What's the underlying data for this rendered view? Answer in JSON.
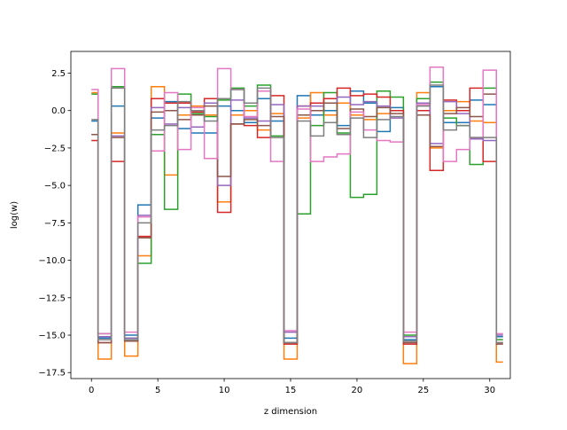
{
  "chart_data": {
    "type": "line",
    "drawstyle": "steps-mid",
    "title": "",
    "xlabel": "z dimension",
    "ylabel": "log(w)",
    "xlim": [
      -1.55,
      31.55
    ],
    "ylim": [
      -17.9,
      3.95
    ],
    "xticks": [
      0,
      5,
      10,
      15,
      20,
      25,
      30
    ],
    "xtick_labels": [
      "0",
      "5",
      "10",
      "15",
      "20",
      "25",
      "30"
    ],
    "yticks": [
      2.5,
      0.0,
      -2.5,
      -5.0,
      -7.5,
      -10.0,
      -12.5,
      -15.0,
      -17.5
    ],
    "ytick_labels": [
      "2.5",
      "0.0",
      "−2.5",
      "−5.0",
      "−7.5",
      "−10.0",
      "−12.5",
      "−15.0",
      "−17.5"
    ],
    "grid": false,
    "legend": "none",
    "x": [
      0,
      1,
      2,
      3,
      4,
      5,
      6,
      7,
      8,
      9,
      10,
      11,
      12,
      13,
      14,
      15,
      16,
      17,
      18,
      19,
      20,
      21,
      22,
      23,
      24,
      25,
      26,
      27,
      28,
      29,
      30,
      31
    ],
    "series": [
      {
        "color": "#1f77b4",
        "values": [
          -0.7,
          -15.2,
          0.3,
          -15.0,
          -6.3,
          -0.5,
          0.6,
          -1.2,
          -1.5,
          -1.5,
          0.3,
          0.0,
          -0.8,
          0.8,
          -0.7,
          -15.2,
          1.0,
          -0.3,
          0.0,
          -1.0,
          1.3,
          0.5,
          -1.4,
          0.2,
          -15.3,
          0.5,
          1.6,
          -0.8,
          -0.8,
          0.7,
          0.4,
          -15.1
        ]
      },
      {
        "color": "#ff7f0e",
        "values": [
          1.2,
          -16.6,
          -1.5,
          -16.4,
          -9.7,
          1.6,
          -4.3,
          -0.3,
          0.3,
          -0.3,
          -6.1,
          -0.3,
          0.0,
          -1.3,
          -0.2,
          -16.6,
          -0.5,
          1.2,
          -0.3,
          0.5,
          -0.3,
          -0.6,
          -0.2,
          0.0,
          -16.9,
          1.2,
          -2.5,
          0.0,
          0.6,
          -0.7,
          -0.8,
          -16.8
        ]
      },
      {
        "color": "#2ca02c",
        "values": [
          1.1,
          -14.9,
          1.6,
          -15.2,
          -10.2,
          -1.6,
          -6.6,
          1.1,
          -0.2,
          -0.4,
          0.7,
          1.5,
          0.3,
          1.7,
          -1.7,
          -15.5,
          -6.9,
          -1.0,
          1.2,
          -1.5,
          -5.8,
          -5.6,
          1.3,
          0.9,
          -15.0,
          0.8,
          1.9,
          -0.5,
          -1.0,
          -3.6,
          1.5,
          -15.3
        ]
      },
      {
        "color": "#d62728",
        "values": [
          -2.0,
          -15.5,
          -3.4,
          -15.4,
          -8.4,
          0.8,
          0.5,
          0.5,
          -0.1,
          0.8,
          -6.8,
          -0.9,
          -1.0,
          -1.8,
          1.0,
          -15.6,
          0.3,
          0.5,
          0.8,
          1.5,
          1.0,
          1.1,
          0.9,
          0.0,
          -15.6,
          0.0,
          -4.0,
          0.7,
          0.0,
          1.5,
          -3.4,
          -15.5
        ]
      },
      {
        "color": "#9467bd",
        "values": [
          -1.6,
          -15.1,
          -1.7,
          -15.2,
          -7.0,
          0.2,
          -0.9,
          0.2,
          -1.1,
          0.5,
          -5.0,
          0.7,
          -0.5,
          -0.7,
          0.4,
          -14.8,
          0.3,
          0.3,
          0.5,
          0.9,
          0.4,
          0.6,
          0.3,
          -0.5,
          -15.1,
          0.5,
          -2.2,
          0.6,
          -0.2,
          -1.9,
          -2.0,
          -15.0
        ]
      },
      {
        "color": "#8c564b",
        "values": [
          -1.6,
          -15.5,
          -1.8,
          -15.4,
          -8.5,
          -0.1,
          0.0,
          -0.6,
          -0.3,
          0.3,
          -4.4,
          -0.9,
          -0.6,
          -1.0,
          -0.4,
          -15.5,
          -0.3,
          0.0,
          0.5,
          -1.2,
          0.1,
          -0.4,
          0.2,
          -0.2,
          -15.5,
          -0.3,
          -2.4,
          -0.2,
          0.2,
          -0.4,
          1.1,
          -15.6
        ]
      },
      {
        "color": "#e377c2",
        "values": [
          1.4,
          -14.9,
          2.8,
          -14.8,
          -7.1,
          -2.7,
          1.2,
          -2.6,
          0.2,
          -3.2,
          2.8,
          1.4,
          -0.4,
          1.3,
          -3.4,
          -14.7,
          0.1,
          -3.4,
          -3.1,
          -2.9,
          -0.1,
          -1.3,
          -2.0,
          -2.1,
          -14.8,
          0.4,
          2.9,
          -3.4,
          -2.6,
          -1.8,
          2.7,
          -14.9
        ]
      },
      {
        "color": "#7f7f7f",
        "values": [
          -0.6,
          -15.3,
          1.5,
          -15.3,
          -7.5,
          -1.3,
          -1.0,
          0.6,
          0.0,
          -0.7,
          0.8,
          1.4,
          0.5,
          1.5,
          -1.8,
          -15.5,
          -0.7,
          -1.7,
          -0.8,
          -1.6,
          -0.5,
          -1.8,
          -0.6,
          -0.4,
          -15.4,
          0.3,
          1.7,
          -1.3,
          -1.0,
          -1.8,
          -1.8,
          -15.5
        ]
      }
    ]
  }
}
